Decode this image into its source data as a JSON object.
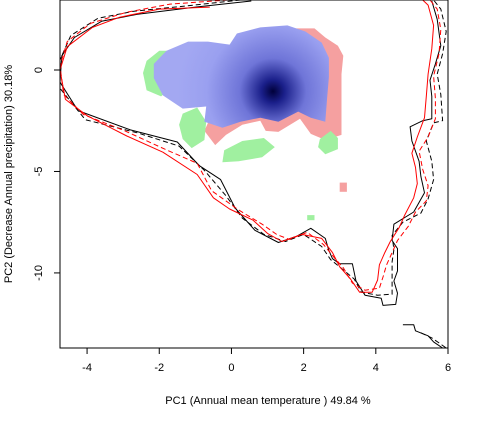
{
  "chart_data": {
    "type": "area",
    "title": "",
    "xlabel": "PC1 (Annual mean temperature ) 49.84 %",
    "ylabel": "PC2 (Decrease Annual precipitation) 30.18%",
    "xlim": [
      -4.75,
      6.0
    ],
    "ylim": [
      -13.7,
      3.45
    ],
    "x_ticks": [
      -4,
      -2,
      0,
      2,
      4,
      6
    ],
    "y_ticks": [
      0,
      -5,
      -10
    ],
    "grid": false,
    "legend": "none",
    "colors": {
      "density_low": "#9aa0f0",
      "density_high": "#00003a",
      "only_a": "#f5a0a0",
      "only_b": "#a0f0a0",
      "outline_a": "#000000",
      "outline_b": "#ff0000"
    },
    "series": [
      {
        "color": "#f5a0a0",
        "kind": "region",
        "polygons": [
          [
            [
              1.55,
              2.05
            ],
            [
              2.3,
              2.05
            ],
            [
              2.6,
              1.6
            ],
            [
              2.95,
              1.2
            ],
            [
              3.1,
              0.7
            ],
            [
              3.05,
              -0.2
            ],
            [
              3.05,
              -3.2
            ],
            [
              2.6,
              -3.45
            ],
            [
              2.2,
              -3.15
            ],
            [
              1.9,
              -2.4
            ],
            [
              1.3,
              -3.05
            ],
            [
              0.95,
              -3.0
            ],
            [
              0.8,
              -2.5
            ],
            [
              0.3,
              -2.7
            ],
            [
              -0.15,
              -3.2
            ],
            [
              -0.45,
              -3.7
            ],
            [
              -0.75,
              -3.0
            ],
            [
              -0.55,
              -2.2
            ],
            [
              0.1,
              -0.9
            ],
            [
              0.85,
              0.8
            ],
            [
              1.2,
              1.5
            ]
          ],
          [
            [
              3.0,
              -5.55
            ],
            [
              3.2,
              -5.55
            ],
            [
              3.2,
              -6.0
            ],
            [
              3.0,
              -6.0
            ]
          ]
        ]
      },
      {
        "color": "#a0f0a0",
        "kind": "region",
        "polygons": [
          [
            [
              -2.35,
              0.45
            ],
            [
              -2.0,
              0.95
            ],
            [
              -1.45,
              0.95
            ],
            [
              -1.2,
              0.35
            ],
            [
              -1.5,
              -0.6
            ],
            [
              -1.95,
              -1.3
            ],
            [
              -2.35,
              -1.0
            ],
            [
              -2.45,
              -0.15
            ]
          ],
          [
            [
              -1.35,
              -2.15
            ],
            [
              -0.95,
              -1.85
            ],
            [
              -0.7,
              -2.55
            ],
            [
              -0.75,
              -3.45
            ],
            [
              -1.1,
              -3.85
            ],
            [
              -1.35,
              -3.4
            ],
            [
              -1.45,
              -2.7
            ]
          ],
          [
            [
              -0.2,
              -3.95
            ],
            [
              0.3,
              -3.5
            ],
            [
              0.9,
              -3.35
            ],
            [
              1.2,
              -3.8
            ],
            [
              0.85,
              -4.3
            ],
            [
              0.2,
              -4.5
            ],
            [
              -0.25,
              -4.55
            ]
          ],
          [
            [
              2.45,
              -3.4
            ],
            [
              2.75,
              -3.0
            ],
            [
              2.95,
              -3.35
            ],
            [
              2.95,
              -3.9
            ],
            [
              2.6,
              -4.15
            ],
            [
              2.4,
              -3.8
            ]
          ],
          [
            [
              2.1,
              -7.15
            ],
            [
              2.3,
              -7.15
            ],
            [
              2.3,
              -7.4
            ],
            [
              2.1,
              -7.4
            ]
          ]
        ]
      },
      {
        "color": "#9aa0f0",
        "kind": "density",
        "peak": [
          1.15,
          -1.05
        ],
        "polygons": [
          [
            [
              -1.8,
              0.95
            ],
            [
              -1.2,
              1.4
            ],
            [
              -0.65,
              1.4
            ],
            [
              -0.05,
              1.25
            ],
            [
              0.15,
              1.8
            ],
            [
              0.8,
              2.1
            ],
            [
              1.55,
              2.2
            ],
            [
              2.05,
              1.9
            ],
            [
              2.5,
              1.35
            ],
            [
              2.7,
              0.6
            ],
            [
              2.7,
              -0.35
            ],
            [
              2.65,
              -1.4
            ],
            [
              2.6,
              -2.55
            ],
            [
              2.2,
              -2.35
            ],
            [
              1.85,
              -2.05
            ],
            [
              1.3,
              -2.55
            ],
            [
              0.8,
              -2.35
            ],
            [
              0.25,
              -2.55
            ],
            [
              -0.25,
              -2.85
            ],
            [
              -0.75,
              -2.55
            ],
            [
              -0.7,
              -1.8
            ],
            [
              -1.35,
              -1.9
            ],
            [
              -1.9,
              -1.25
            ],
            [
              -2.15,
              -0.4
            ],
            [
              -2.15,
              0.3
            ]
          ]
        ]
      },
      {
        "color": "#000000",
        "kind": "contour",
        "dash": "solid",
        "points": [
          [
            0.55,
            3.4
          ],
          [
            -1.0,
            3.1
          ],
          [
            -2.6,
            2.75
          ],
          [
            -3.6,
            2.4
          ],
          [
            -4.35,
            1.6
          ],
          [
            -4.7,
            0.7
          ],
          [
            -4.75,
            -0.6
          ],
          [
            -4.25,
            -2.0
          ],
          [
            -2.8,
            -2.95
          ],
          [
            -1.5,
            -3.55
          ],
          [
            -0.9,
            -4.7
          ],
          [
            -0.3,
            -5.4
          ],
          [
            0.1,
            -6.8
          ],
          [
            0.65,
            -7.9
          ],
          [
            1.3,
            -8.5
          ],
          [
            1.8,
            -8.2
          ],
          [
            2.2,
            -7.8
          ],
          [
            2.6,
            -8.3
          ],
          [
            2.7,
            -8.9
          ],
          [
            2.8,
            -9.3
          ],
          [
            3.0,
            -9.55
          ],
          [
            3.35,
            -9.55
          ],
          [
            3.45,
            -10.4
          ],
          [
            3.7,
            -11.1
          ],
          [
            4.15,
            -11.25
          ],
          [
            4.2,
            -11.6
          ],
          [
            4.55,
            -11.55
          ],
          [
            4.6,
            -11.0
          ],
          [
            4.5,
            -10.4
          ],
          [
            4.6,
            -9.9
          ],
          [
            4.6,
            -8.8
          ],
          [
            4.45,
            -8.4
          ],
          [
            4.5,
            -7.6
          ],
          [
            5.05,
            -7.0
          ],
          [
            5.35,
            -6.05
          ],
          [
            5.25,
            -5.25
          ],
          [
            5.2,
            -4.5
          ],
          [
            5.0,
            -3.5
          ],
          [
            4.95,
            -2.8
          ],
          [
            5.3,
            -2.5
          ],
          [
            5.55,
            -2.4
          ],
          [
            5.55,
            -1.3
          ],
          [
            5.5,
            -0.5
          ],
          [
            5.65,
            0.3
          ],
          [
            5.8,
            1.2
          ],
          [
            5.7,
            2.5
          ],
          [
            5.55,
            3.4
          ]
        ]
      },
      {
        "color": "#000000",
        "kind": "contour",
        "dash": "dashed",
        "points": [
          [
            0.25,
            3.45
          ],
          [
            -1.3,
            3.15
          ],
          [
            -2.7,
            2.9
          ],
          [
            -3.7,
            2.55
          ],
          [
            -4.45,
            1.7
          ],
          [
            -4.75,
            0.5
          ],
          [
            -4.75,
            -0.9
          ],
          [
            -4.05,
            -2.45
          ],
          [
            -2.6,
            -3.1
          ],
          [
            -1.45,
            -3.75
          ],
          [
            -0.75,
            -4.95
          ],
          [
            -0.15,
            -6.2
          ],
          [
            0.3,
            -7.3
          ],
          [
            0.9,
            -8.1
          ],
          [
            1.5,
            -8.45
          ],
          [
            2.0,
            -8.1
          ],
          [
            2.5,
            -8.7
          ],
          [
            2.75,
            -9.35
          ],
          [
            3.1,
            -9.85
          ],
          [
            3.4,
            -10.3
          ],
          [
            3.6,
            -10.95
          ],
          [
            4.05,
            -11.1
          ],
          [
            4.45,
            -11.05
          ],
          [
            4.45,
            -10.3
          ],
          [
            4.45,
            -9.45
          ],
          [
            4.5,
            -8.85
          ],
          [
            4.45,
            -8.15
          ],
          [
            4.75,
            -7.5
          ],
          [
            5.25,
            -7.05
          ],
          [
            5.45,
            -6.35
          ],
          [
            5.6,
            -5.4
          ],
          [
            5.55,
            -4.5
          ],
          [
            5.4,
            -3.5
          ],
          [
            5.6,
            -2.6
          ],
          [
            5.85,
            -2.5
          ],
          [
            5.8,
            -1.2
          ],
          [
            5.7,
            -0.2
          ],
          [
            5.85,
            0.8
          ],
          [
            5.95,
            1.9
          ],
          [
            5.8,
            3.0
          ],
          [
            5.6,
            3.45
          ]
        ]
      },
      {
        "color": "#000000",
        "kind": "contour",
        "dash": "solid",
        "points": [
          [
            4.75,
            -12.55
          ],
          [
            5.05,
            -12.55
          ],
          [
            5.1,
            -12.85
          ],
          [
            5.45,
            -13.1
          ],
          [
            5.6,
            -13.4
          ],
          [
            5.85,
            -13.7
          ]
        ]
      },
      {
        "color": "#000000",
        "kind": "contour",
        "dash": "dashed",
        "points": [
          [
            5.25,
            -12.95
          ],
          [
            5.55,
            -13.2
          ],
          [
            5.75,
            -13.45
          ],
          [
            5.95,
            -13.7
          ]
        ]
      },
      {
        "color": "#ff0000",
        "kind": "contour",
        "dash": "solid",
        "points": [
          [
            -0.6,
            3.1
          ],
          [
            -2.0,
            3.0
          ],
          [
            -3.1,
            2.6
          ],
          [
            -3.85,
            2.1
          ],
          [
            -4.55,
            1.15
          ],
          [
            -4.75,
            0.0
          ],
          [
            -4.6,
            -1.45
          ],
          [
            -4.0,
            -2.25
          ],
          [
            -2.9,
            -3.25
          ],
          [
            -1.9,
            -4.05
          ],
          [
            -0.95,
            -5.15
          ],
          [
            -0.5,
            -6.3
          ],
          [
            -0.05,
            -6.85
          ],
          [
            0.6,
            -7.4
          ],
          [
            1.0,
            -8.05
          ],
          [
            1.4,
            -8.45
          ],
          [
            1.95,
            -8.1
          ],
          [
            2.5,
            -8.3
          ],
          [
            2.8,
            -9.0
          ],
          [
            3.0,
            -9.7
          ],
          [
            3.3,
            -10.3
          ],
          [
            3.55,
            -10.95
          ],
          [
            3.9,
            -10.95
          ],
          [
            4.05,
            -10.35
          ],
          [
            4.1,
            -9.6
          ],
          [
            4.25,
            -9.0
          ],
          [
            4.4,
            -8.45
          ],
          [
            4.65,
            -7.75
          ],
          [
            4.8,
            -7.15
          ],
          [
            5.05,
            -6.3
          ],
          [
            5.15,
            -5.6
          ],
          [
            5.1,
            -4.8
          ],
          [
            5.0,
            -4.1
          ],
          [
            5.15,
            -3.3
          ],
          [
            5.35,
            -2.35
          ],
          [
            5.4,
            -1.3
          ],
          [
            5.45,
            -0.2
          ],
          [
            5.55,
            1.05
          ],
          [
            5.6,
            2.2
          ],
          [
            5.45,
            3.2
          ],
          [
            5.3,
            3.45
          ]
        ]
      },
      {
        "color": "#ff0000",
        "kind": "contour",
        "dash": "dashed",
        "points": [
          [
            -0.1,
            3.45
          ],
          [
            -1.7,
            3.25
          ],
          [
            -2.9,
            2.85
          ],
          [
            -3.9,
            2.3
          ],
          [
            -4.55,
            1.4
          ],
          [
            -4.75,
            0.2
          ],
          [
            -4.65,
            -1.2
          ],
          [
            -4.1,
            -2.2
          ],
          [
            -2.95,
            -3.0
          ],
          [
            -1.85,
            -3.9
          ],
          [
            -0.95,
            -4.6
          ],
          [
            -0.55,
            -5.95
          ],
          [
            0.2,
            -6.9
          ],
          [
            0.85,
            -7.6
          ],
          [
            1.25,
            -8.1
          ],
          [
            1.6,
            -8.35
          ],
          [
            2.1,
            -8.0
          ],
          [
            2.55,
            -8.6
          ],
          [
            2.85,
            -9.25
          ],
          [
            3.1,
            -9.75
          ],
          [
            3.35,
            -10.5
          ],
          [
            3.7,
            -10.85
          ],
          [
            4.1,
            -10.75
          ],
          [
            4.2,
            -10.2
          ],
          [
            4.3,
            -9.6
          ],
          [
            4.45,
            -9.0
          ],
          [
            4.6,
            -8.4
          ],
          [
            4.9,
            -7.7
          ],
          [
            5.1,
            -7.0
          ],
          [
            5.4,
            -6.45
          ],
          [
            5.45,
            -5.7
          ],
          [
            5.3,
            -4.9
          ],
          [
            5.2,
            -4.0
          ],
          [
            5.45,
            -3.3
          ],
          [
            5.65,
            -2.4
          ],
          [
            5.65,
            -1.4
          ],
          [
            5.6,
            -0.3
          ],
          [
            5.75,
            0.8
          ],
          [
            5.8,
            2.0
          ],
          [
            5.7,
            3.0
          ],
          [
            5.5,
            3.45
          ]
        ]
      }
    ]
  }
}
